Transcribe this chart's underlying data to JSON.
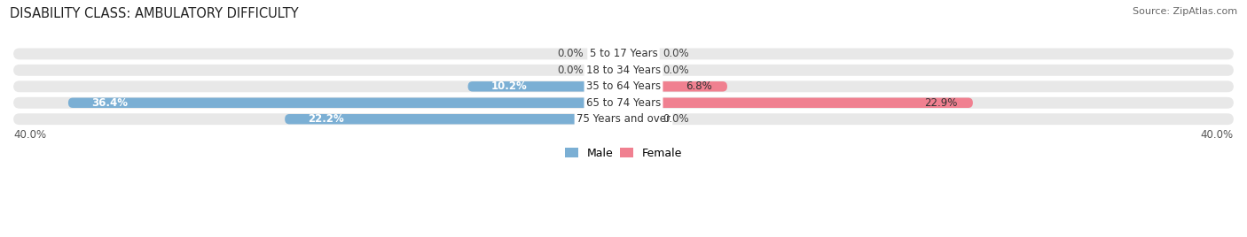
{
  "title": "DISABILITY CLASS: AMBULATORY DIFFICULTY",
  "source": "Source: ZipAtlas.com",
  "categories": [
    "5 to 17 Years",
    "18 to 34 Years",
    "35 to 64 Years",
    "65 to 74 Years",
    "75 Years and over"
  ],
  "male_values": [
    0.0,
    0.0,
    10.2,
    36.4,
    22.2
  ],
  "female_values": [
    0.0,
    0.0,
    6.8,
    22.9,
    0.0
  ],
  "male_color": "#7BAFD4",
  "female_color": "#F08090",
  "bar_bg_color": "#E8E8E8",
  "axis_limit": 40.0,
  "bar_height": 0.62,
  "stub_size": 1.8,
  "background_color": "#FFFFFF",
  "title_fontsize": 10.5,
  "label_fontsize": 8.5,
  "category_fontsize": 8.5,
  "axis_label_fontsize": 8.5,
  "legend_fontsize": 9,
  "source_fontsize": 8
}
